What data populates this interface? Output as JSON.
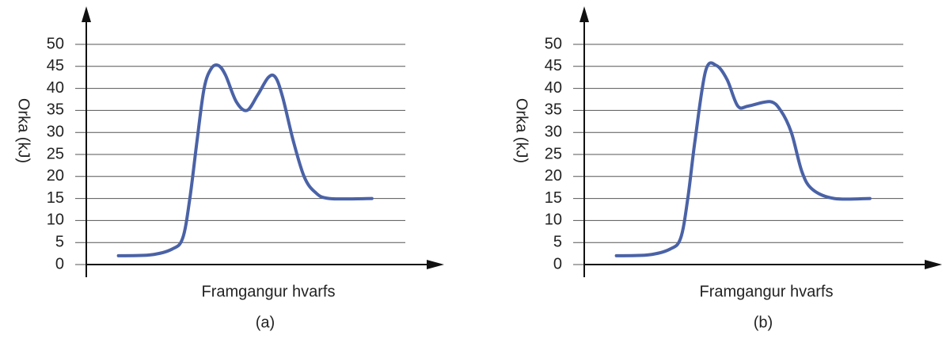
{
  "chart_data": [
    {
      "type": "line",
      "ylabel": "Orka (kJ)",
      "xlabel": "Framgangur hvarfs",
      "caption": "(a)",
      "color": "#4a62a6",
      "grid": true,
      "xlim": [
        0,
        100
      ],
      "ylim": [
        0,
        50
      ],
      "yticks": [
        0,
        5,
        10,
        15,
        20,
        25,
        30,
        35,
        40,
        45,
        50
      ],
      "x": [
        9,
        18,
        24,
        27,
        29,
        31,
        33,
        35,
        37,
        39,
        42,
        45,
        48,
        51,
        53,
        55,
        58,
        61,
        64,
        68,
        80
      ],
      "values": [
        2,
        2.2,
        3.5,
        6,
        15,
        28,
        40,
        44.5,
        45.2,
        43,
        37,
        35,
        38.5,
        42.5,
        42.5,
        38,
        28,
        20,
        16.5,
        15,
        15
      ]
    },
    {
      "type": "line",
      "ylabel": "Orka (kJ)",
      "xlabel": "Framgangur hvarfs",
      "caption": "(b)",
      "color": "#4a62a6",
      "grid": true,
      "xlim": [
        0,
        100
      ],
      "ylim": [
        0,
        50
      ],
      "yticks": [
        0,
        5,
        10,
        15,
        20,
        25,
        30,
        35,
        40,
        45,
        50
      ],
      "x": [
        9,
        18,
        24,
        27,
        29,
        31,
        34,
        37,
        40,
        43,
        46,
        52,
        55,
        58,
        61,
        64,
        70,
        80
      ],
      "values": [
        2,
        2.2,
        3.5,
        6,
        15,
        28,
        44,
        45.2,
        42,
        36,
        36,
        37,
        35,
        30,
        21,
        17,
        15,
        15
      ]
    }
  ]
}
